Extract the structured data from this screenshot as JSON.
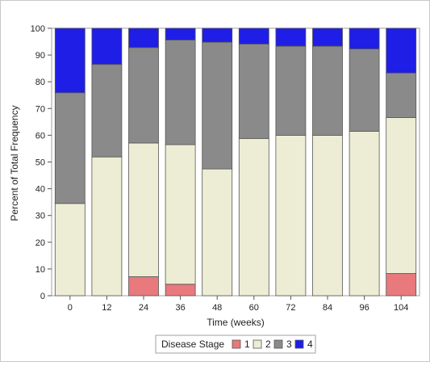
{
  "chart_data": {
    "type": "bar",
    "stacked": true,
    "xlabel": "Time (weeks)",
    "ylabel": "Percent of Total Frequency",
    "categories": [
      "0",
      "12",
      "24",
      "36",
      "48",
      "60",
      "72",
      "84",
      "96",
      "104"
    ],
    "ylim": [
      0,
      100
    ],
    "yticks": [
      0,
      10,
      20,
      30,
      40,
      50,
      60,
      70,
      80,
      90,
      100
    ],
    "grid": false,
    "legend": {
      "title": "Disease Stage",
      "position": "bottom"
    },
    "series": [
      {
        "name": "1",
        "color": "#e8797c",
        "values": [
          0,
          0,
          7.1,
          4.3,
          0,
          0,
          0,
          0,
          0,
          8.3
        ]
      },
      {
        "name": "2",
        "color": "#ededd5",
        "values": [
          34.5,
          51.9,
          50.0,
          52.2,
          47.4,
          58.8,
          60.0,
          60.0,
          61.5,
          58.3
        ]
      },
      {
        "name": "3",
        "color": "#8a8a8a",
        "values": [
          41.4,
          34.6,
          35.7,
          39.1,
          47.4,
          35.3,
          33.3,
          33.3,
          30.8,
          16.7
        ]
      },
      {
        "name": "4",
        "color": "#1e1ee6",
        "values": [
          24.1,
          13.5,
          7.2,
          4.4,
          5.2,
          5.9,
          6.7,
          6.7,
          7.7,
          16.7
        ]
      }
    ]
  }
}
